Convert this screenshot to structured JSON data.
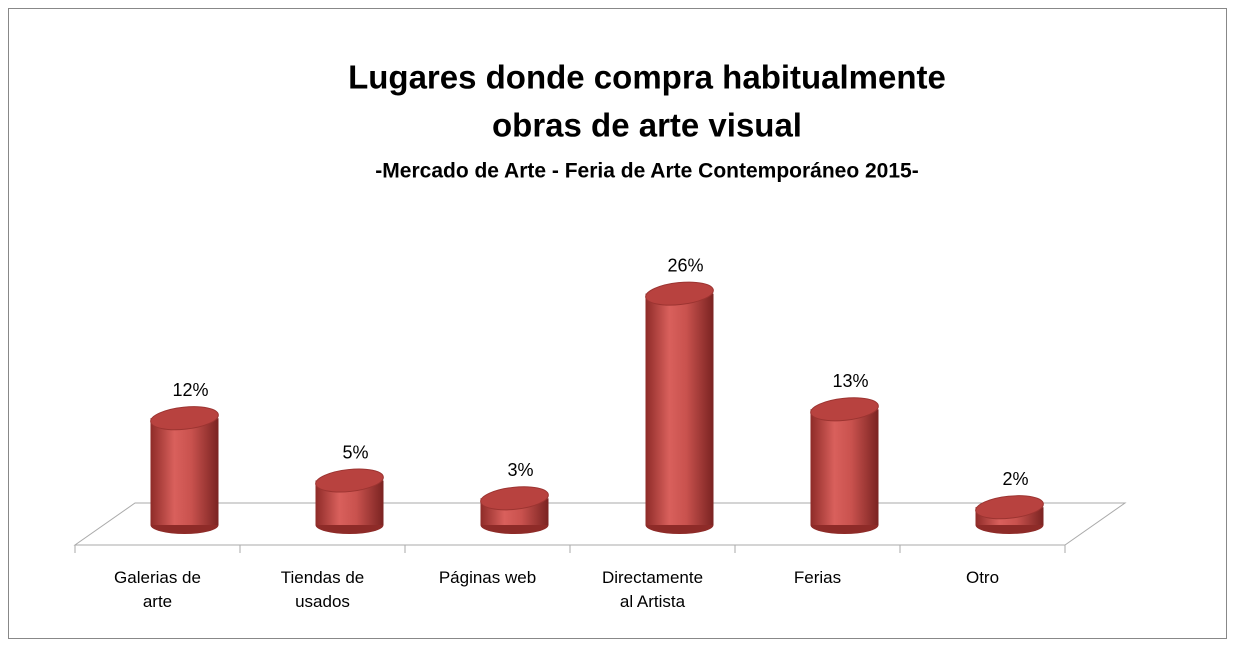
{
  "chart_data": {
    "type": "bar3d",
    "title": [
      "Lugares donde compra habitualmente",
      "obras de arte visual"
    ],
    "subtitle": "-Mercado de Arte - Feria de Arte Contemporáneo 2015-",
    "categories": [
      "Galerias de arte",
      "Tiendas de usados",
      "Páginas web",
      "Directamente al Artista",
      "Ferias",
      "Otro"
    ],
    "values": [
      12,
      5,
      3,
      26,
      13,
      2
    ],
    "value_labels": [
      "12%",
      "5%",
      "3%",
      "26%",
      "13%",
      "2%"
    ],
    "color": "#c0504d"
  }
}
